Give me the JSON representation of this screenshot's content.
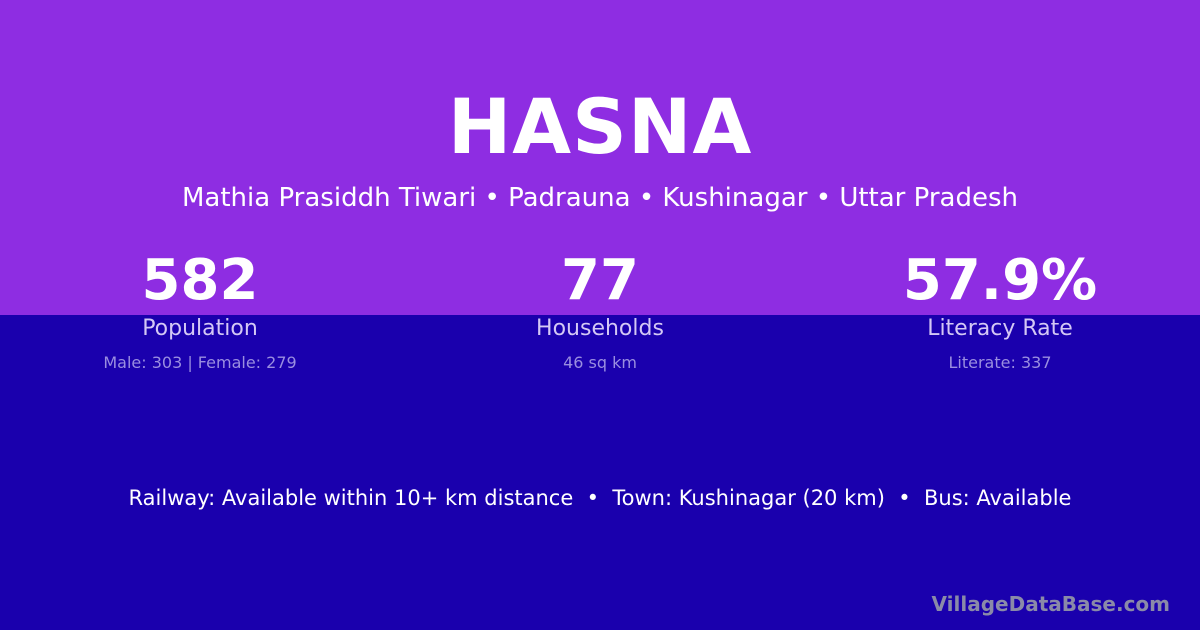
{
  "village": "HASNA",
  "breadcrumb": "Mathia Prasiddh Tiwari • Padrauna • Kushinagar • Uttar Pradesh",
  "stats": [
    {
      "value": "582",
      "label": "Population",
      "detail": "Male: 303 | Female: 279"
    },
    {
      "value": "77",
      "label": "Households",
      "detail": "46 sq km"
    },
    {
      "value": "57.9%",
      "label": "Literacy Rate",
      "detail": "Literate: 337"
    }
  ],
  "transport": "Railway: Available within 10+ km distance  •  Town: Kushinagar (20 km)  •  Bus: Available",
  "brand": "VillageDataBase.com",
  "colors": {
    "top": "#8e2de2",
    "bottom": "#1a00ad"
  }
}
